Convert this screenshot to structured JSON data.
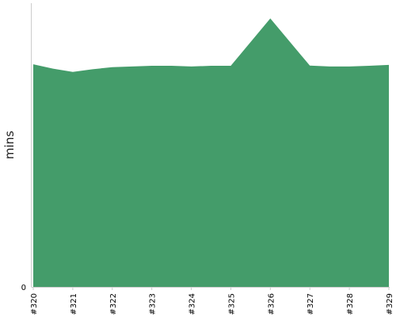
{
  "chart_data": {
    "type": "area",
    "ylabel": "mins",
    "xlabel": "",
    "title": "",
    "categories": [
      "#320",
      "#321",
      "#322",
      "#323",
      "#324",
      "#325",
      "#326",
      "#327",
      "#328",
      "#329"
    ],
    "points": [
      {
        "x": "#320",
        "y": 10.2
      },
      {
        "x": "#320.5",
        "y": 10.0
      },
      {
        "x": "#321",
        "y": 9.85
      },
      {
        "x": "#321.5",
        "y": 9.97
      },
      {
        "x": "#322",
        "y": 10.07
      },
      {
        "x": "#322.5",
        "y": 10.1
      },
      {
        "x": "#323",
        "y": 10.13
      },
      {
        "x": "#323.5",
        "y": 10.13
      },
      {
        "x": "#324",
        "y": 10.1
      },
      {
        "x": "#324.5",
        "y": 10.13
      },
      {
        "x": "#325",
        "y": 10.13
      },
      {
        "x": "#326",
        "y": 12.3
      },
      {
        "x": "#327",
        "y": 10.14
      },
      {
        "x": "#327.5",
        "y": 10.1
      },
      {
        "x": "#328",
        "y": 10.1
      },
      {
        "x": "#328.5",
        "y": 10.13
      },
      {
        "x": "#329",
        "y": 10.17
      }
    ],
    "yticks": [
      0
    ],
    "ylim": [
      0,
      13
    ],
    "grid": false,
    "colors": {
      "area": "#449c6a",
      "axis": "#cccccc"
    }
  }
}
